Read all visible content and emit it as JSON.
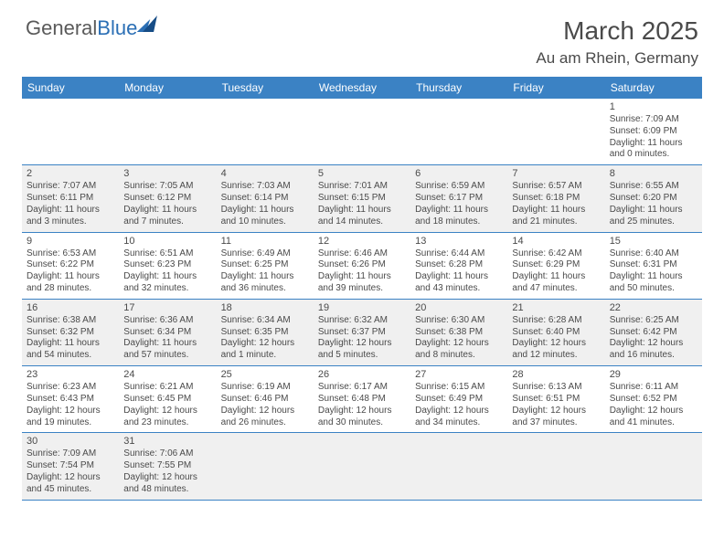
{
  "brand": {
    "part1": "General",
    "part2": "Blue"
  },
  "title": "March 2025",
  "location": "Au am Rhein, Germany",
  "colors": {
    "header_bg": "#3b82c4",
    "alt_bg": "#f0f0f0",
    "text": "#4a4a4a",
    "brand_blue": "#2b6fb5"
  },
  "weekdays": [
    "Sunday",
    "Monday",
    "Tuesday",
    "Wednesday",
    "Thursday",
    "Friday",
    "Saturday"
  ],
  "weeks": [
    [
      null,
      null,
      null,
      null,
      null,
      null,
      {
        "n": "1",
        "sr": "Sunrise: 7:09 AM",
        "ss": "Sunset: 6:09 PM",
        "dl": "Daylight: 11 hours and 0 minutes."
      }
    ],
    [
      {
        "n": "2",
        "sr": "Sunrise: 7:07 AM",
        "ss": "Sunset: 6:11 PM",
        "dl": "Daylight: 11 hours and 3 minutes."
      },
      {
        "n": "3",
        "sr": "Sunrise: 7:05 AM",
        "ss": "Sunset: 6:12 PM",
        "dl": "Daylight: 11 hours and 7 minutes."
      },
      {
        "n": "4",
        "sr": "Sunrise: 7:03 AM",
        "ss": "Sunset: 6:14 PM",
        "dl": "Daylight: 11 hours and 10 minutes."
      },
      {
        "n": "5",
        "sr": "Sunrise: 7:01 AM",
        "ss": "Sunset: 6:15 PM",
        "dl": "Daylight: 11 hours and 14 minutes."
      },
      {
        "n": "6",
        "sr": "Sunrise: 6:59 AM",
        "ss": "Sunset: 6:17 PM",
        "dl": "Daylight: 11 hours and 18 minutes."
      },
      {
        "n": "7",
        "sr": "Sunrise: 6:57 AM",
        "ss": "Sunset: 6:18 PM",
        "dl": "Daylight: 11 hours and 21 minutes."
      },
      {
        "n": "8",
        "sr": "Sunrise: 6:55 AM",
        "ss": "Sunset: 6:20 PM",
        "dl": "Daylight: 11 hours and 25 minutes."
      }
    ],
    [
      {
        "n": "9",
        "sr": "Sunrise: 6:53 AM",
        "ss": "Sunset: 6:22 PM",
        "dl": "Daylight: 11 hours and 28 minutes."
      },
      {
        "n": "10",
        "sr": "Sunrise: 6:51 AM",
        "ss": "Sunset: 6:23 PM",
        "dl": "Daylight: 11 hours and 32 minutes."
      },
      {
        "n": "11",
        "sr": "Sunrise: 6:49 AM",
        "ss": "Sunset: 6:25 PM",
        "dl": "Daylight: 11 hours and 36 minutes."
      },
      {
        "n": "12",
        "sr": "Sunrise: 6:46 AM",
        "ss": "Sunset: 6:26 PM",
        "dl": "Daylight: 11 hours and 39 minutes."
      },
      {
        "n": "13",
        "sr": "Sunrise: 6:44 AM",
        "ss": "Sunset: 6:28 PM",
        "dl": "Daylight: 11 hours and 43 minutes."
      },
      {
        "n": "14",
        "sr": "Sunrise: 6:42 AM",
        "ss": "Sunset: 6:29 PM",
        "dl": "Daylight: 11 hours and 47 minutes."
      },
      {
        "n": "15",
        "sr": "Sunrise: 6:40 AM",
        "ss": "Sunset: 6:31 PM",
        "dl": "Daylight: 11 hours and 50 minutes."
      }
    ],
    [
      {
        "n": "16",
        "sr": "Sunrise: 6:38 AM",
        "ss": "Sunset: 6:32 PM",
        "dl": "Daylight: 11 hours and 54 minutes."
      },
      {
        "n": "17",
        "sr": "Sunrise: 6:36 AM",
        "ss": "Sunset: 6:34 PM",
        "dl": "Daylight: 11 hours and 57 minutes."
      },
      {
        "n": "18",
        "sr": "Sunrise: 6:34 AM",
        "ss": "Sunset: 6:35 PM",
        "dl": "Daylight: 12 hours and 1 minute."
      },
      {
        "n": "19",
        "sr": "Sunrise: 6:32 AM",
        "ss": "Sunset: 6:37 PM",
        "dl": "Daylight: 12 hours and 5 minutes."
      },
      {
        "n": "20",
        "sr": "Sunrise: 6:30 AM",
        "ss": "Sunset: 6:38 PM",
        "dl": "Daylight: 12 hours and 8 minutes."
      },
      {
        "n": "21",
        "sr": "Sunrise: 6:28 AM",
        "ss": "Sunset: 6:40 PM",
        "dl": "Daylight: 12 hours and 12 minutes."
      },
      {
        "n": "22",
        "sr": "Sunrise: 6:25 AM",
        "ss": "Sunset: 6:42 PM",
        "dl": "Daylight: 12 hours and 16 minutes."
      }
    ],
    [
      {
        "n": "23",
        "sr": "Sunrise: 6:23 AM",
        "ss": "Sunset: 6:43 PM",
        "dl": "Daylight: 12 hours and 19 minutes."
      },
      {
        "n": "24",
        "sr": "Sunrise: 6:21 AM",
        "ss": "Sunset: 6:45 PM",
        "dl": "Daylight: 12 hours and 23 minutes."
      },
      {
        "n": "25",
        "sr": "Sunrise: 6:19 AM",
        "ss": "Sunset: 6:46 PM",
        "dl": "Daylight: 12 hours and 26 minutes."
      },
      {
        "n": "26",
        "sr": "Sunrise: 6:17 AM",
        "ss": "Sunset: 6:48 PM",
        "dl": "Daylight: 12 hours and 30 minutes."
      },
      {
        "n": "27",
        "sr": "Sunrise: 6:15 AM",
        "ss": "Sunset: 6:49 PM",
        "dl": "Daylight: 12 hours and 34 minutes."
      },
      {
        "n": "28",
        "sr": "Sunrise: 6:13 AM",
        "ss": "Sunset: 6:51 PM",
        "dl": "Daylight: 12 hours and 37 minutes."
      },
      {
        "n": "29",
        "sr": "Sunrise: 6:11 AM",
        "ss": "Sunset: 6:52 PM",
        "dl": "Daylight: 12 hours and 41 minutes."
      }
    ],
    [
      {
        "n": "30",
        "sr": "Sunrise: 7:09 AM",
        "ss": "Sunset: 7:54 PM",
        "dl": "Daylight: 12 hours and 45 minutes."
      },
      {
        "n": "31",
        "sr": "Sunrise: 7:06 AM",
        "ss": "Sunset: 7:55 PM",
        "dl": "Daylight: 12 hours and 48 minutes."
      },
      null,
      null,
      null,
      null,
      null
    ]
  ]
}
